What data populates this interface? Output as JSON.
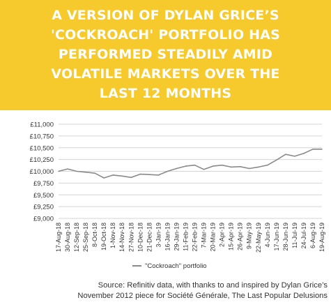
{
  "header": {
    "title_lines": [
      "A VERSION OF DYLAN GRICE’S",
      "'COCKROACH' PORTFOLIO HAS",
      "PERFORMED STEADILY AMID",
      "VOLATILE MARKETS OVER THE",
      "LAST 12 MONTHS"
    ],
    "background": "#f6c92d",
    "text_color": "#ffffff"
  },
  "source_lines": [
    "Source: Refinitiv data, with thanks to and inspired by Dylan Grice’s",
    "November 2012 piece for Société Générale, The Last Popular Delusions"
  ],
  "chart_data": {
    "type": "line",
    "title": "",
    "xlabel": "",
    "ylabel": "",
    "ylim": [
      9000,
      11000
    ],
    "yticks": [
      9000,
      9250,
      9500,
      9750,
      10000,
      10250,
      10500,
      10750,
      11000
    ],
    "ytick_labels": [
      "£9,000",
      "£9,250",
      "£9,500",
      "£9,750",
      "£10,000",
      "£10,250",
      "£10,500",
      "£10,750",
      "£11,000"
    ],
    "xtick_labels": [
      "17-Aug-18",
      "30-Aug-18",
      "12-Sep-18",
      "25-Sep-18",
      "8-Oct-18",
      "19-Oct-18",
      "1-Nov-18",
      "14-Nov-18",
      "27-Nov-18",
      "10-Dec-18",
      "21-Dec-18",
      "3-Jan-19",
      "16-Jan-19",
      "29-Jan-19",
      "11-Feb-19",
      "22-Feb-19",
      "7-Mar-19",
      "20-Mar-19",
      "2-Apr-19",
      "15-Apr-19",
      "26-Apr-19",
      "9-May-19",
      "22-May-19",
      "4-Jun-19",
      "17-Jun-19",
      "28-Jun-19",
      "11-Jul-19",
      "24-Jul-19",
      "6-Aug-19",
      "19-Aug-19"
    ],
    "grid": true,
    "legend_position": "bottom",
    "series": [
      {
        "name": "\"Cockroach\" portfolio",
        "color": "#8a8a8a",
        "x": [
          "17-Aug-18",
          "30-Aug-18",
          "12-Sep-18",
          "25-Sep-18",
          "8-Oct-18",
          "19-Oct-18",
          "1-Nov-18",
          "14-Nov-18",
          "27-Nov-18",
          "10-Dec-18",
          "21-Dec-18",
          "3-Jan-19",
          "16-Jan-19",
          "29-Jan-19",
          "11-Feb-19",
          "22-Feb-19",
          "7-Mar-19",
          "20-Mar-19",
          "2-Apr-19",
          "15-Apr-19",
          "26-Apr-19",
          "9-May-19",
          "22-May-19",
          "4-Jun-19",
          "17-Jun-19",
          "28-Jun-19",
          "11-Jul-19",
          "24-Jul-19",
          "6-Aug-19",
          "19-Aug-19"
        ],
        "values": [
          10000,
          10050,
          10000,
          9980,
          9960,
          9860,
          9920,
          9900,
          9870,
          9940,
          9930,
          9920,
          10000,
          10060,
          10110,
          10130,
          10040,
          10110,
          10130,
          10090,
          10100,
          10060,
          10090,
          10130,
          10240,
          10360,
          10320,
          10380,
          10470,
          10470
        ]
      }
    ]
  }
}
